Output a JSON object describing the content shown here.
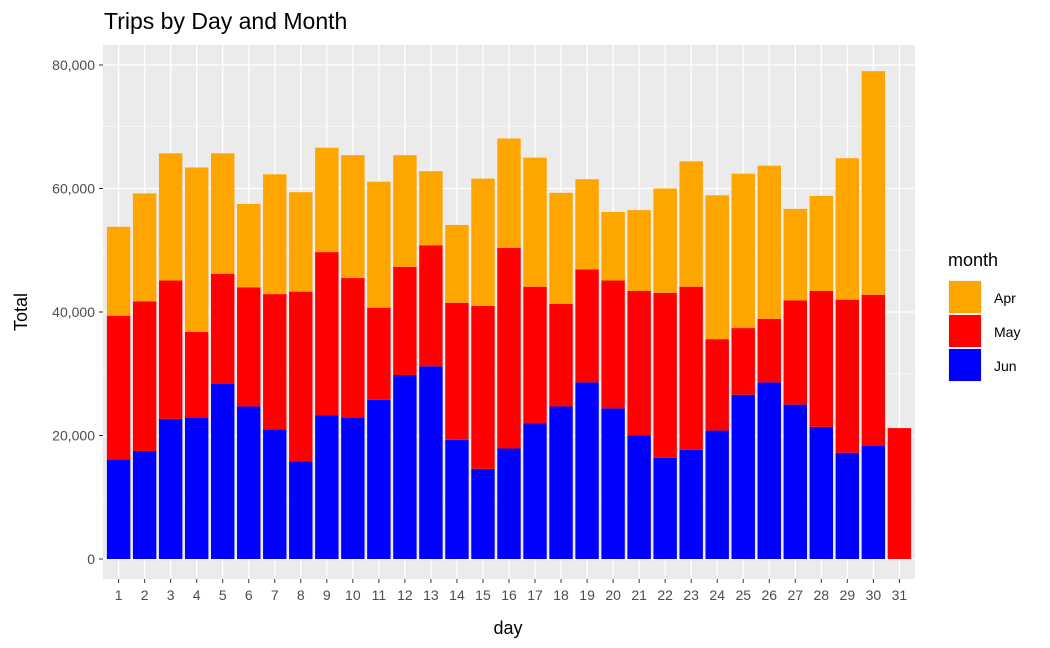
{
  "chart_data": {
    "type": "bar",
    "stacked": true,
    "title": "Trips by Day and Month",
    "xlabel": "day",
    "ylabel": "Total",
    "ylim": [
      0,
      82000
    ],
    "yticks": [
      0,
      20000,
      40000,
      60000,
      80000
    ],
    "ytick_labels": [
      "0",
      "20,000",
      "40,000",
      "60,000",
      "80,000"
    ],
    "grid": true,
    "legend_position": "right",
    "legend_title": "month",
    "categories": [
      "1",
      "2",
      "3",
      "4",
      "5",
      "6",
      "7",
      "8",
      "9",
      "10",
      "11",
      "12",
      "13",
      "14",
      "15",
      "16",
      "17",
      "18",
      "19",
      "20",
      "21",
      "22",
      "23",
      "24",
      "25",
      "26",
      "27",
      "28",
      "29",
      "30",
      "31"
    ],
    "series": [
      {
        "name": "Apr",
        "color": "#FFA500",
        "values": [
          14400,
          17500,
          20600,
          26600,
          19500,
          13500,
          19400,
          16100,
          16900,
          19900,
          20400,
          18100,
          12000,
          12600,
          20600,
          17700,
          20900,
          18000,
          14600,
          11100,
          13100,
          16900,
          20300,
          23300,
          25000,
          24800,
          14800,
          15400,
          22900,
          36200,
          0
        ]
      },
      {
        "name": "May",
        "color": "#FF0000",
        "values": [
          23300,
          24200,
          22400,
          13900,
          17800,
          19300,
          21900,
          27500,
          26400,
          22600,
          14900,
          17500,
          19600,
          22200,
          26400,
          32500,
          22100,
          16600,
          18300,
          20700,
          23400,
          26700,
          26400,
          14800,
          10800,
          10300,
          16900,
          22000,
          24800,
          24500,
          21200
        ]
      },
      {
        "name": "Jun",
        "color": "#0000FF",
        "values": [
          16100,
          17500,
          22700,
          22900,
          28400,
          24700,
          21000,
          15800,
          23300,
          22900,
          25800,
          29800,
          31200,
          19300,
          14600,
          17900,
          22000,
          24700,
          28600,
          24400,
          20000,
          16400,
          17700,
          20800,
          26600,
          28600,
          25000,
          21400,
          17200,
          18300,
          0
        ]
      }
    ]
  }
}
